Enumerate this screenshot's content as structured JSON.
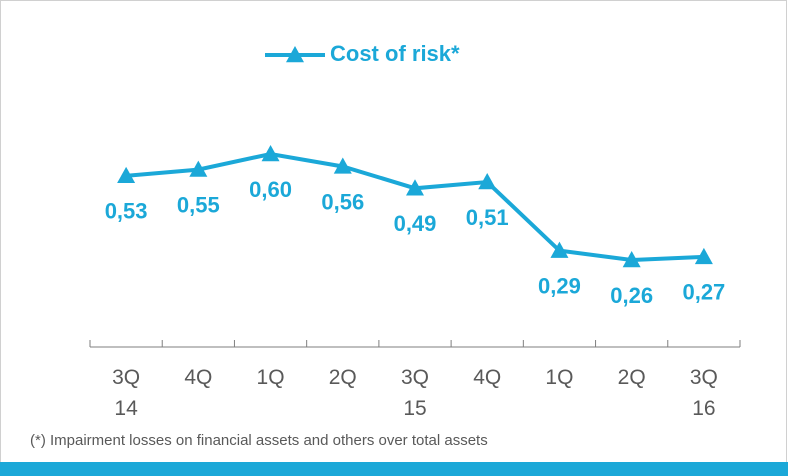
{
  "chart_data": {
    "type": "line",
    "categories": [
      "3Q\n14",
      "4Q",
      "1Q",
      "2Q",
      "3Q\n15",
      "4Q",
      "1Q",
      "2Q",
      "3Q\n16"
    ],
    "series": [
      {
        "name": "Cost of risk*",
        "color": "#1ba8d8",
        "values": [
          0.53,
          0.55,
          0.6,
          0.56,
          0.49,
          0.51,
          0.29,
          0.26,
          0.27
        ],
        "value_labels": [
          "0,53",
          "0,55",
          "0,60",
          "0,56",
          "0,49",
          "0,51",
          "0,29",
          "0,26",
          "0,27"
        ]
      }
    ],
    "footnote": "(*) Impairment losses on financial assets and others over total assets"
  }
}
